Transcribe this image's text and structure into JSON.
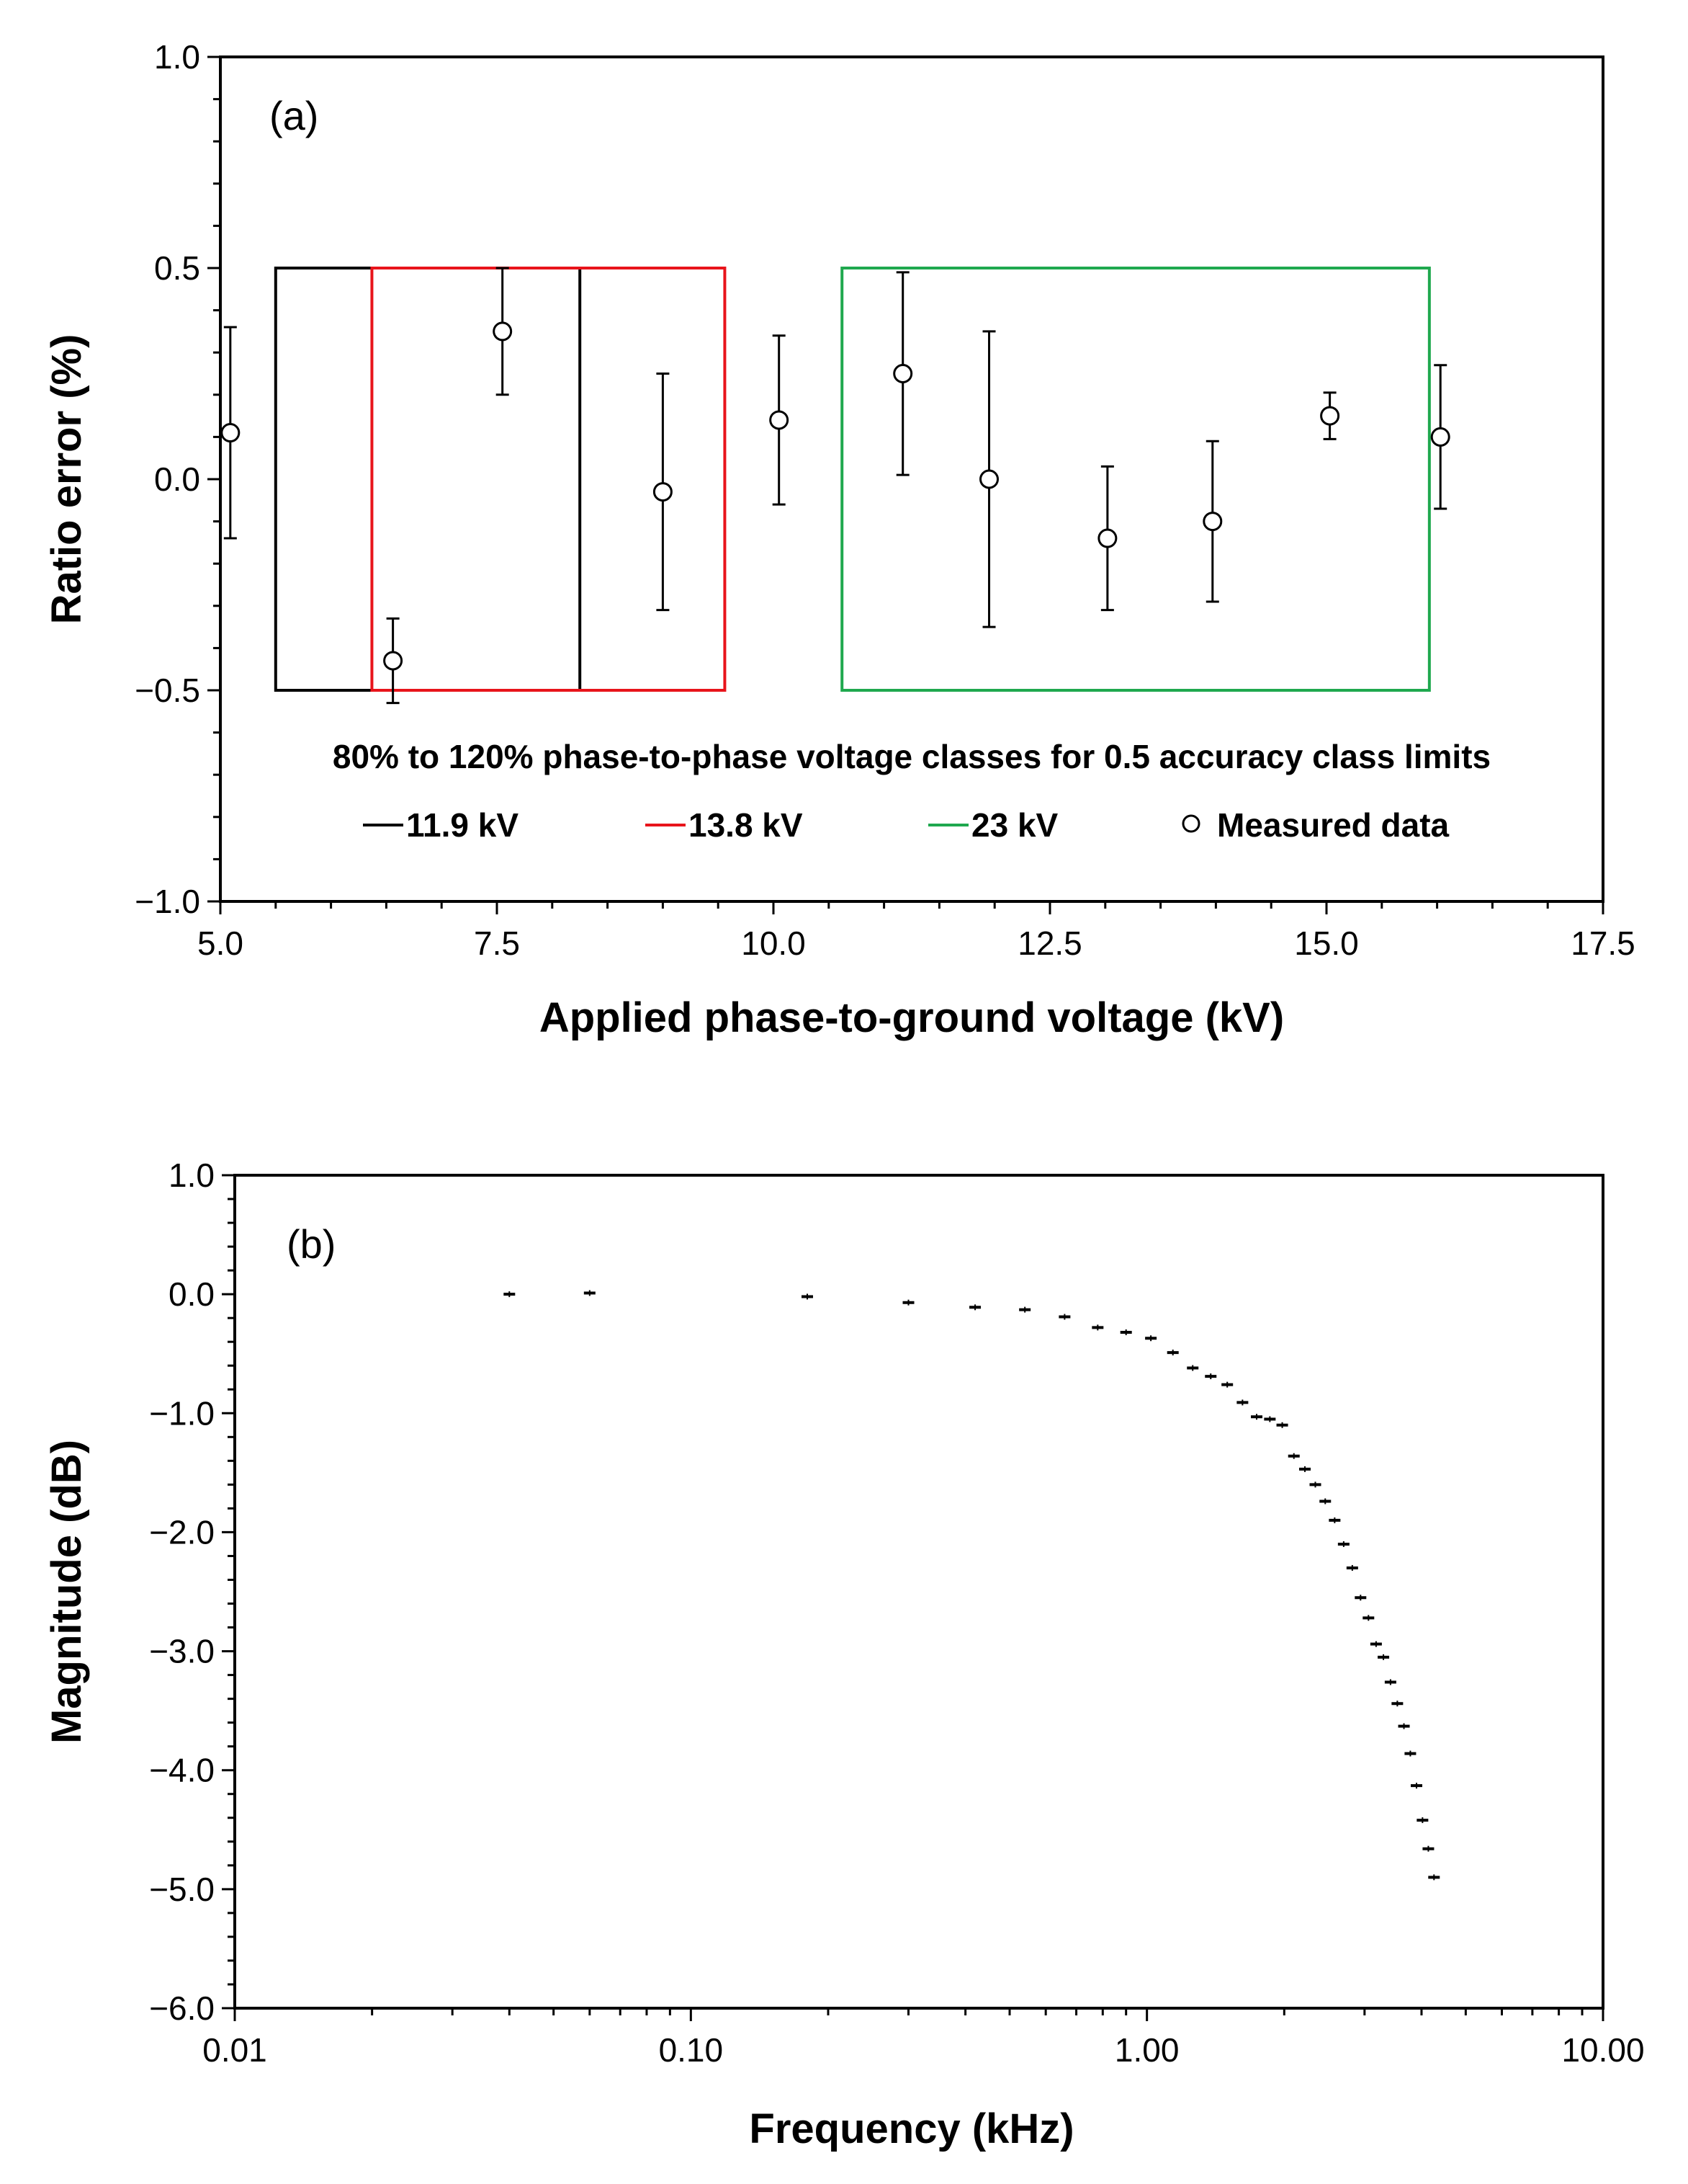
{
  "chart_data": [
    {
      "type": "scatter",
      "panel_label": "(a)",
      "xlabel": "Applied phase-to-ground voltage (kV)",
      "ylabel": "Ratio error (%)",
      "xlim": [
        5.0,
        17.5
      ],
      "ylim": [
        -1.0,
        1.0
      ],
      "xticks": [
        "5.0",
        "7.5",
        "10.0",
        "12.5",
        "15.0",
        "17.5"
      ],
      "yticks": [
        "1.0",
        "0.5",
        "0.0",
        "−0.5",
        "−1.0"
      ],
      "legend_title": "80% to 120% phase-to-phase voltage classes for 0.5 accuracy class limits",
      "limit_boxes": [
        {
          "name": "11.9 kV",
          "label": "11.9 kV",
          "color": "#000000",
          "x_range": [
            5.5,
            8.25
          ],
          "y_range": [
            -0.5,
            0.5
          ]
        },
        {
          "name": "13.8 kV",
          "label": "13.8 kV",
          "color": "#e8141b",
          "x_range": [
            6.37,
            9.56
          ],
          "y_range": [
            -0.5,
            0.5
          ]
        },
        {
          "name": "23 kV",
          "label": "23 kV",
          "color": "#1fa84e",
          "x_range": [
            10.62,
            15.93
          ],
          "y_range": [
            -0.5,
            0.5
          ]
        }
      ],
      "series": [
        {
          "name": "Measured data",
          "label": "Measured data",
          "x": [
            5.09,
            6.56,
            7.55,
            9.0,
            10.05,
            11.17,
            11.95,
            13.02,
            13.97,
            15.03,
            16.03
          ],
          "y": [
            0.11,
            -0.43,
            0.35,
            -0.03,
            0.14,
            0.25,
            0.0,
            -0.14,
            -0.1,
            0.15,
            0.1
          ],
          "yerr_low": [
            0.25,
            0.1,
            0.15,
            0.28,
            0.2,
            0.24,
            0.35,
            0.17,
            0.19,
            0.055,
            0.17
          ],
          "yerr_high": [
            0.25,
            0.1,
            0.15,
            0.28,
            0.2,
            0.24,
            0.35,
            0.17,
            0.19,
            0.055,
            0.17
          ]
        }
      ]
    },
    {
      "type": "scatter",
      "panel_label": "(b)",
      "xlabel": "Frequency (kHz)",
      "ylabel": "Magnitude (dB)",
      "xscale": "log",
      "xlim": [
        0.01,
        10.0
      ],
      "ylim": [
        -6.0,
        1.0
      ],
      "xticks": [
        "0.01",
        "0.10",
        "1.00",
        "10.00"
      ],
      "yticks": [
        "1.0",
        "0.0",
        "−1.0",
        "−2.0",
        "−3.0",
        "−4.0",
        "−5.0",
        "−6.0"
      ],
      "series": [
        {
          "name": "Magnitude",
          "x": [
            0.04,
            0.06,
            0.18,
            0.3,
            0.42,
            0.54,
            0.66,
            0.78,
            0.9,
            1.02,
            1.14,
            1.26,
            1.38,
            1.5,
            1.62,
            1.74,
            1.86,
            1.98,
            2.1,
            2.22,
            2.34,
            2.46,
            2.58,
            2.7,
            2.82,
            2.94,
            3.06,
            3.18,
            3.3,
            3.42,
            3.54,
            3.66,
            3.78,
            3.9,
            4.02,
            4.14,
            4.26
          ],
          "y": [
            0.0,
            0.01,
            -0.02,
            -0.07,
            -0.11,
            -0.13,
            -0.19,
            -0.28,
            -0.32,
            -0.37,
            -0.49,
            -0.62,
            -0.69,
            -0.76,
            -0.91,
            -1.03,
            -1.05,
            -1.1,
            -1.36,
            -1.47,
            -1.6,
            -1.74,
            -1.9,
            -2.1,
            -2.3,
            -2.55,
            -2.72,
            -2.94,
            -3.05,
            -3.26,
            -3.44,
            -3.63,
            -3.86,
            -4.13,
            -4.42,
            -4.66,
            -4.9
          ]
        }
      ]
    }
  ]
}
